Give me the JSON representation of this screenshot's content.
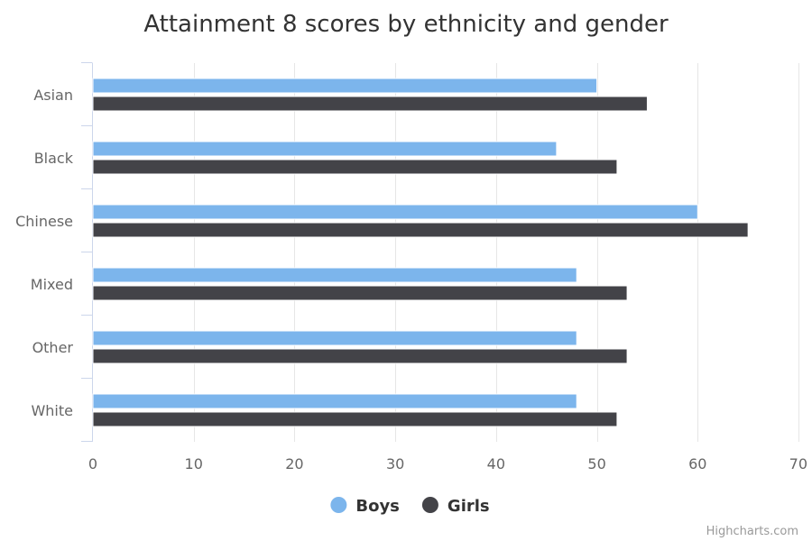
{
  "chart_data": {
    "type": "bar",
    "orientation": "horizontal",
    "title": "Attainment 8 scores by ethnicity and gender",
    "categories": [
      "Asian",
      "Black",
      "Chinese",
      "Mixed",
      "Other",
      "White"
    ],
    "series": [
      {
        "name": "Boys",
        "color": "#7cb5ec",
        "values": [
          50,
          46,
          60,
          48,
          48,
          48
        ]
      },
      {
        "name": "Girls",
        "color": "#434348",
        "values": [
          55,
          52,
          65,
          53,
          53,
          52
        ]
      }
    ],
    "xaxis": {
      "min": 0,
      "max": 70,
      "ticks": [
        0,
        10,
        20,
        30,
        40,
        50,
        60,
        70
      ]
    },
    "grid": true,
    "legend": "bottom-center"
  },
  "credits": "Highcharts.com"
}
